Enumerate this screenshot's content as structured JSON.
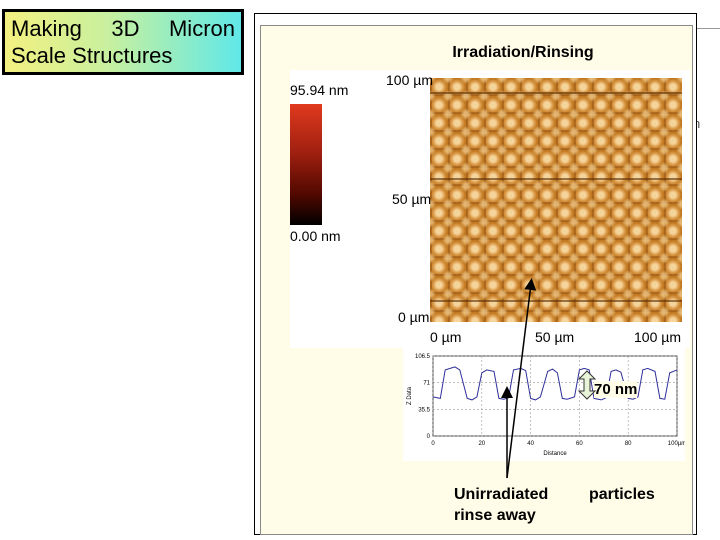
{
  "title": {
    "line1_words": [
      "Making",
      "3D",
      "Micron"
    ],
    "line2": "Scale Structures"
  },
  "section_title": "Irradiation/Rinsing",
  "fragment_text": "n",
  "colorbar": {
    "max_label": "95.94 nm",
    "min_label": "0.00 nm"
  },
  "afm_image": {
    "y_ticks": [
      "100 µm",
      "50 µm",
      "0 µm"
    ],
    "x_ticks": [
      "0 µm",
      "50 µm",
      "100 µm"
    ]
  },
  "chart_data": {
    "type": "line",
    "title": "",
    "xlabel": "Distance",
    "ylabel": "Z Data",
    "xlim": [
      0,
      100
    ],
    "ylim": [
      0,
      106.5
    ],
    "x_tick_labels": [
      "0",
      "20",
      "40",
      "60",
      "80",
      "100µm"
    ],
    "y_tick_labels": [
      "106.5",
      "71",
      "35.5",
      "0"
    ],
    "grid": true,
    "series": [
      {
        "name": "",
        "x": [
          0,
          3,
          5,
          7,
          9,
          11,
          14,
          16,
          18,
          20,
          22,
          25,
          27,
          29,
          31,
          33,
          36,
          38,
          40,
          42,
          44,
          47,
          49,
          51,
          53,
          55,
          58,
          60,
          62,
          64,
          66,
          69,
          71,
          73,
          75,
          77,
          80,
          82,
          84,
          86,
          88,
          91,
          93,
          95,
          97,
          100
        ],
        "y": [
          52,
          50,
          88,
          90,
          92,
          88,
          50,
          48,
          52,
          84,
          88,
          86,
          50,
          49,
          51,
          88,
          90,
          87,
          50,
          48,
          52,
          86,
          89,
          84,
          50,
          49,
          52,
          88,
          90,
          88,
          50,
          48,
          51,
          86,
          88,
          85,
          50,
          49,
          52,
          88,
          90,
          86,
          50,
          49,
          84,
          88
        ]
      }
    ]
  },
  "annotation_70nm": "70 nm",
  "bottom": {
    "unirradiated_line1": "Unirradiated",
    "unirradiated_line2": "rinse away",
    "particles": "particles"
  },
  "colors": {
    "title_border": "#000000",
    "frame_bg": "#fffce8",
    "profile_line": "#2e2e9a",
    "afm_base": "#c27a22"
  }
}
